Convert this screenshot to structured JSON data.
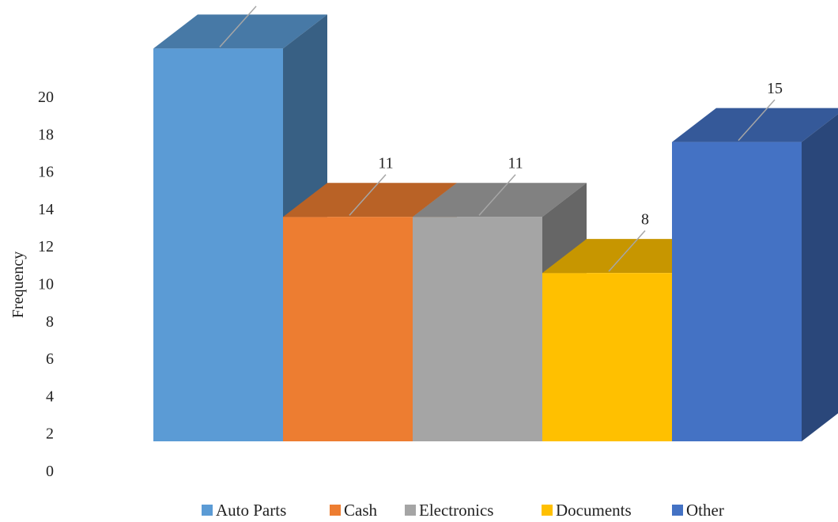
{
  "chart_data": {
    "type": "bar",
    "style": "3d-clustered-no-gap",
    "categories": [
      "Auto Parts",
      "Cash",
      "Electronics",
      "Documents",
      "Other"
    ],
    "values": [
      20,
      11,
      11,
      8,
      15
    ],
    "ylabel": "Frequency",
    "xlabel": "",
    "ylim": [
      0,
      20
    ],
    "yticks": [
      0,
      2,
      4,
      6,
      8,
      10,
      12,
      14,
      16,
      18,
      20
    ],
    "grid": false,
    "legend_position": "bottom",
    "data_labels": true,
    "colors": [
      "#5B9BD5",
      "#ED7D31",
      "#A5A5A5",
      "#FFC000",
      "#4472C4"
    ]
  }
}
